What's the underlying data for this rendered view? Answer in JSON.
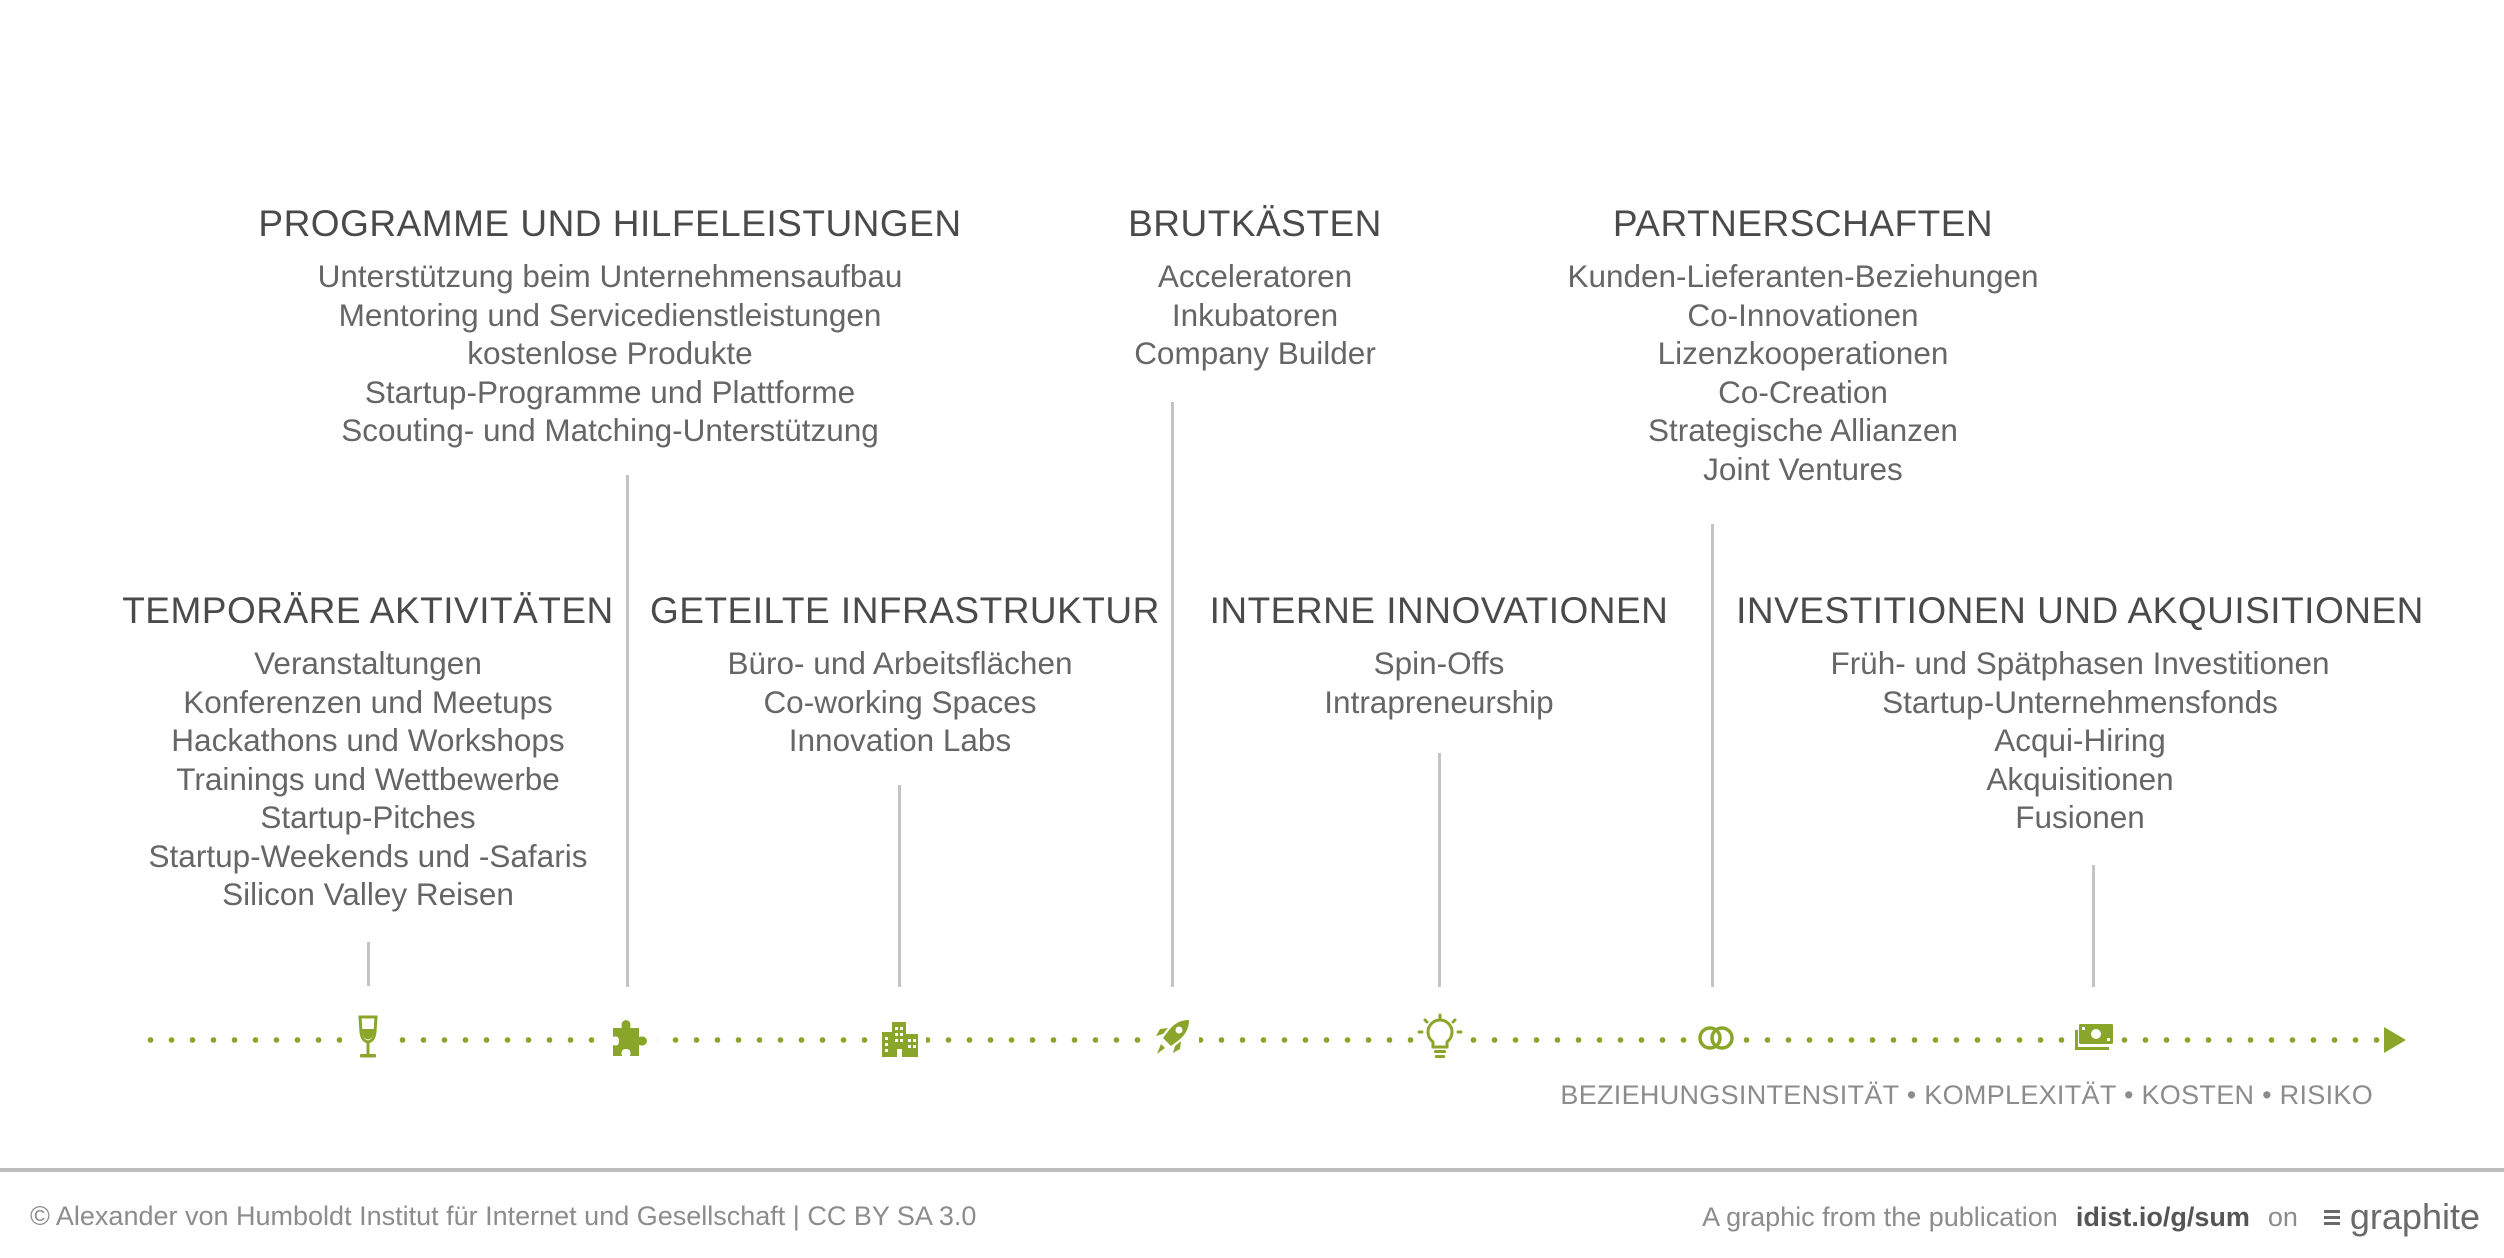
{
  "groups": {
    "programme": {
      "title": "PROGRAMME UND HILFELEISTUNGEN",
      "items": [
        "Unterstützung beim Unternehmensaufbau",
        "Mentoring und Servicedienstleistungen",
        "kostenlose Produkte",
        "Startup-Programme und Plattforme",
        "Scouting- und Matching-Unterstützung"
      ]
    },
    "brutkaesten": {
      "title": "BRUTKÄSTEN",
      "items": [
        "Acceleratoren",
        "Inkubatoren",
        "Company Builder"
      ]
    },
    "partnerschaften": {
      "title": "PARTNERSCHAFTEN",
      "items": [
        "Kunden-Lieferanten-Beziehungen",
        "Co-Innovationen",
        "Lizenzkooperationen",
        "Co-Creation",
        "Strategische Allianzen",
        "Joint Ventures"
      ]
    },
    "temporaer": {
      "title": "TEMPORÄRE AKTIVITÄTEN",
      "items": [
        "Veranstaltungen",
        "Konferenzen und Meetups",
        "Hackathons und Workshops",
        "Trainings und Wettbewerbe",
        "Startup-Pitches",
        "Startup-Weekends und -Safaris",
        "Silicon Valley Reisen"
      ]
    },
    "infrastruktur": {
      "title": "GETEILTE INFRASTRUKTUR",
      "items": [
        "Büro- und Arbeitsflächen",
        "Co-working Spaces",
        "Innovation Labs"
      ]
    },
    "intern": {
      "title": "INTERNE INNOVATIONEN",
      "items": [
        "Spin-Offs",
        "Intrapreneurship"
      ]
    },
    "investitionen": {
      "title": "INVESTITIONEN UND AKQUISITIONEN",
      "items": [
        "Früh- und Spätphasen Investitionen",
        "Startup-Unternehmensfonds",
        "Acqui-Hiring",
        "Akquisitionen",
        "Fusionen"
      ]
    }
  },
  "icons": [
    "wine-glass-icon",
    "puzzle-piece-icon",
    "building-icon",
    "rocket-icon",
    "lightbulb-icon",
    "rings-icon",
    "money-icon"
  ],
  "axis_label": "BEZIEHUNGSINTENSITÄT • KOMPLEXITÄT • KOSTEN • RISIKO",
  "footer": {
    "copyright": "© Alexander von Humboldt Institut für Internet und Gesellschaft | CC BY SA 3.0",
    "publication_text": "A graphic from the publication",
    "publication_link": "idist.io/g/sum",
    "on_text": "on",
    "brand": "graphite"
  },
  "colors": {
    "accent": "#8aa62a",
    "text": "#5f5f5f",
    "line": "#c4c4c4"
  }
}
